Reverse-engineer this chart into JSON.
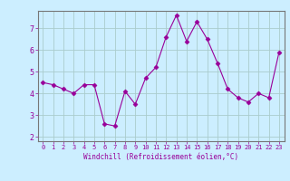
{
  "x": [
    0,
    1,
    2,
    3,
    4,
    5,
    6,
    7,
    8,
    9,
    10,
    11,
    12,
    13,
    14,
    15,
    16,
    17,
    18,
    19,
    20,
    21,
    22,
    23
  ],
  "y": [
    4.5,
    4.4,
    4.2,
    4.0,
    4.4,
    4.4,
    2.6,
    2.5,
    4.1,
    3.5,
    4.7,
    5.2,
    6.6,
    7.6,
    6.4,
    7.3,
    6.5,
    5.4,
    4.2,
    3.8,
    3.6,
    4.0,
    3.8,
    5.9
  ],
  "line_color": "#990099",
  "marker": "D",
  "marker_size": 2.5,
  "bg_color": "#cceeff",
  "grid_color": "#aacccc",
  "xlabel": "Windchill (Refroidissement éolien,°C)",
  "xlabel_color": "#990099",
  "tick_color": "#990099",
  "axis_color": "#777777",
  "xlim": [
    -0.5,
    23.5
  ],
  "ylim": [
    1.8,
    7.8
  ],
  "yticks": [
    2,
    3,
    4,
    5,
    6,
    7
  ],
  "xticks": [
    0,
    1,
    2,
    3,
    4,
    5,
    6,
    7,
    8,
    9,
    10,
    11,
    12,
    13,
    14,
    15,
    16,
    17,
    18,
    19,
    20,
    21,
    22,
    23
  ],
  "xtick_labels": [
    "0",
    "1",
    "2",
    "3",
    "4",
    "5",
    "6",
    "7",
    "8",
    "9",
    "10",
    "11",
    "12",
    "13",
    "14",
    "15",
    "16",
    "17",
    "18",
    "19",
    "20",
    "21",
    "22",
    "23"
  ]
}
